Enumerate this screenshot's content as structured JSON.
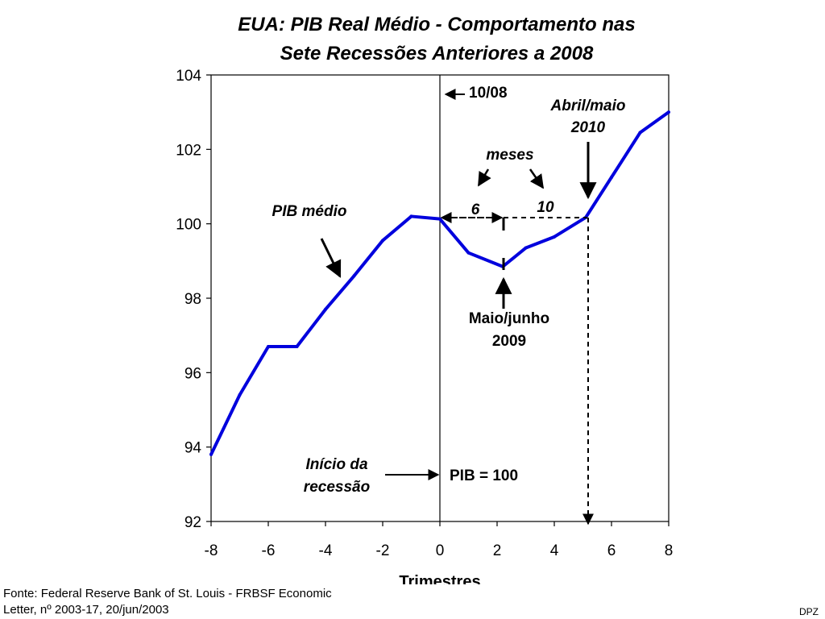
{
  "chart_data": {
    "type": "line",
    "title_line1": "EUA: PIB Real Médio - Comportamento nas",
    "title_line2": "Sete Recessões Anteriores a 2008",
    "xlabel": "Trimestres",
    "ylabel": "",
    "xlim": [
      -8,
      8
    ],
    "ylim": [
      92,
      104
    ],
    "xticks": [
      -8,
      -6,
      -4,
      -2,
      0,
      2,
      4,
      6,
      8
    ],
    "yticks": [
      92,
      94,
      96,
      98,
      100,
      102,
      104
    ],
    "series": [
      {
        "color": "#0000dd",
        "points": [
          [
            -8,
            93.8
          ],
          [
            -7,
            95.4
          ],
          [
            -6,
            96.7
          ],
          [
            -5,
            96.7
          ],
          [
            -4,
            97.7
          ],
          [
            -3,
            98.6
          ],
          [
            -2,
            99.55
          ],
          [
            -1,
            100.2
          ],
          [
            0,
            100.13
          ],
          [
            1,
            99.22
          ],
          [
            2.2,
            98.85
          ],
          [
            3,
            99.35
          ],
          [
            4,
            99.65
          ],
          [
            5.1,
            100.17
          ],
          [
            6,
            101.25
          ],
          [
            7,
            102.45
          ],
          [
            8,
            103.0
          ]
        ]
      }
    ],
    "annotations": {
      "series_label": "PIB médio",
      "current_date": "10/08",
      "start_label_line1": "Início da",
      "start_label_line2": "recessão",
      "start_value": "PIB = 100",
      "months_label": "meses",
      "months_to_trough": "6",
      "months_to_recovery": "10",
      "trough_label_line1": "Maio/junho",
      "trough_label_line2": "2009",
      "recovery_label_line1": "Abril/maio",
      "recovery_label_line2": "2010"
    }
  },
  "footer": {
    "source_line1": "Fonte: Federal Reserve Bank of St. Louis - FRBSF Economic",
    "source_line2": "Letter, nº 2003-17, 20/jun/2003",
    "author": "DPZ"
  }
}
